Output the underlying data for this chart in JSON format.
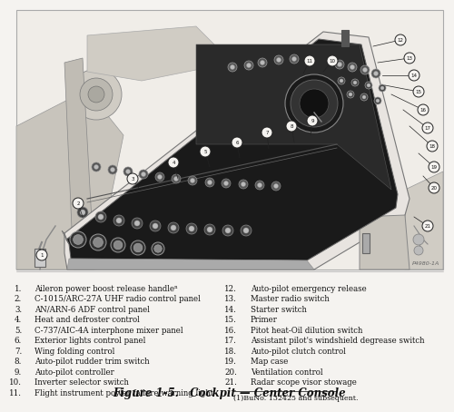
{
  "figure_title": "Figure 1-5.   Cockpit — Center Console",
  "image_id": "P4980-1A",
  "bg_color": "#f5f3f0",
  "page_bg": "#f0ede8",
  "left_labels": [
    [
      "1.",
      "Aileron power boost release handleⁿ"
    ],
    [
      "2.",
      "C-1015/ARC-27A UHF radio control panel"
    ],
    [
      "3.",
      "AN/ARN-6 ADF control panel"
    ],
    [
      "4.",
      "Heat and defroster control"
    ],
    [
      "5.",
      "C-737/AIC-4A interphone mixer panel"
    ],
    [
      "6.",
      "Exterior lights control panel"
    ],
    [
      "7.",
      "Wing folding control"
    ],
    [
      "8.",
      "Auto-pilot rudder trim switch"
    ],
    [
      "9.",
      "Auto-pilot controller"
    ],
    [
      "10.",
      "Inverter selector switch"
    ],
    [
      "11.",
      "Flight instrument power failure warning light"
    ]
  ],
  "right_labels": [
    [
      "12.",
      "Auto-pilot emergency release"
    ],
    [
      "13.",
      "Master radio switch"
    ],
    [
      "14.",
      "Starter switch"
    ],
    [
      "15.",
      "Primer"
    ],
    [
      "16.",
      "Pitot heat-Oil dilution switch"
    ],
    [
      "17.",
      "Assistant pilot's windshield degrease switch"
    ],
    [
      "18.",
      "Auto-pilot clutch control"
    ],
    [
      "19.",
      "Map case"
    ],
    [
      "20.",
      "Ventilation control"
    ],
    [
      "21.",
      "Radar scope visor stowage"
    ]
  ],
  "footnote": "(1)BuNo. 132425 and subsequent.",
  "text_fontsize": 6.2,
  "title_fontsize": 8.5,
  "img_border_color": "#aaaaaa",
  "console_dark": "#1c1c1c",
  "console_mid": "#2e2e2e",
  "console_light": "#444444",
  "line_color": "#222222",
  "callout_fill": "#f5f3f0",
  "struct_color": "#d8d4cc",
  "struct_edge": "#999999"
}
